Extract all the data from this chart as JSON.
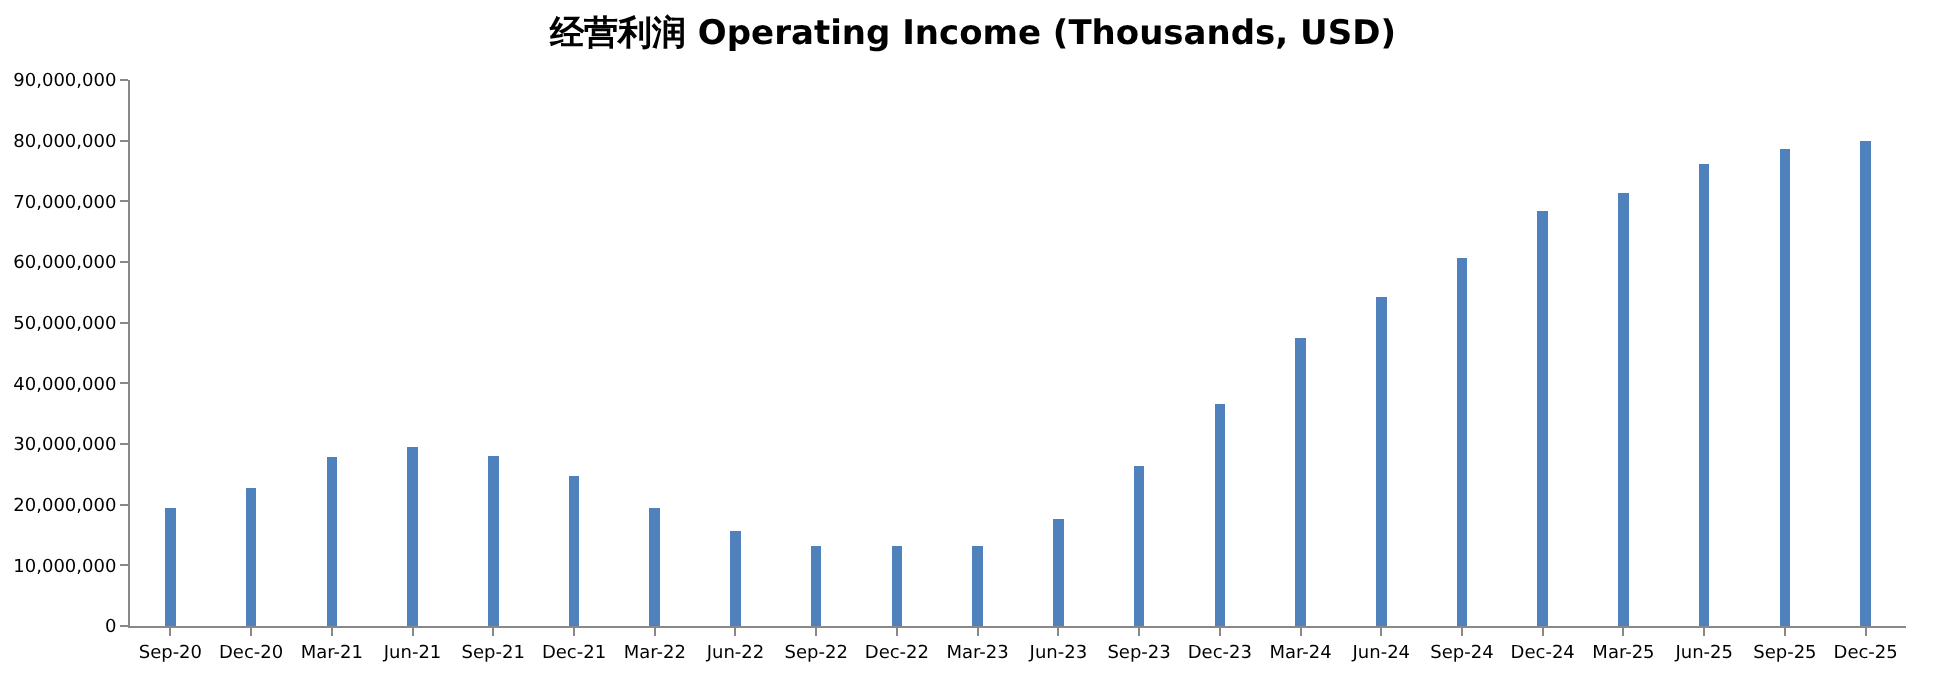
{
  "chart_data": {
    "type": "bar",
    "title": "经营利润 Operating Income (Thousands, USD)",
    "categories": [
      "Sep-20",
      "Dec-20",
      "Mar-21",
      "Jun-21",
      "Sep-21",
      "Dec-21",
      "Mar-22",
      "Jun-22",
      "Sep-22",
      "Dec-22",
      "Mar-23",
      "Jun-23",
      "Sep-23",
      "Dec-23",
      "Mar-24",
      "Jun-24",
      "Sep-24",
      "Dec-24",
      "Mar-25",
      "Jun-25",
      "Sep-25",
      "Dec-25"
    ],
    "values": [
      19500000,
      22700000,
      27800000,
      29500000,
      28100000,
      24700000,
      19500000,
      15600000,
      13200000,
      13200000,
      13200000,
      17600000,
      26400000,
      36600000,
      47400000,
      54200000,
      60600000,
      68400000,
      71400000,
      76200000,
      78600000,
      79900000
    ],
    "color": "#4f81bd",
    "ylim": [
      0,
      90000000
    ],
    "yticks": [
      {
        "value": 0,
        "label": "0"
      },
      {
        "value": 10000000,
        "label": "10,000,000"
      },
      {
        "value": 20000000,
        "label": "20,000,000"
      },
      {
        "value": 30000000,
        "label": "30,000,000"
      },
      {
        "value": 40000000,
        "label": "40,000,000"
      },
      {
        "value": 50000000,
        "label": "50,000,000"
      },
      {
        "value": 60000000,
        "label": "60,000,000"
      },
      {
        "value": 70000000,
        "label": "70,000,000"
      },
      {
        "value": 80000000,
        "label": "80,000,000"
      },
      {
        "value": 90000000,
        "label": "90,000,000"
      }
    ],
    "grid": false
  }
}
